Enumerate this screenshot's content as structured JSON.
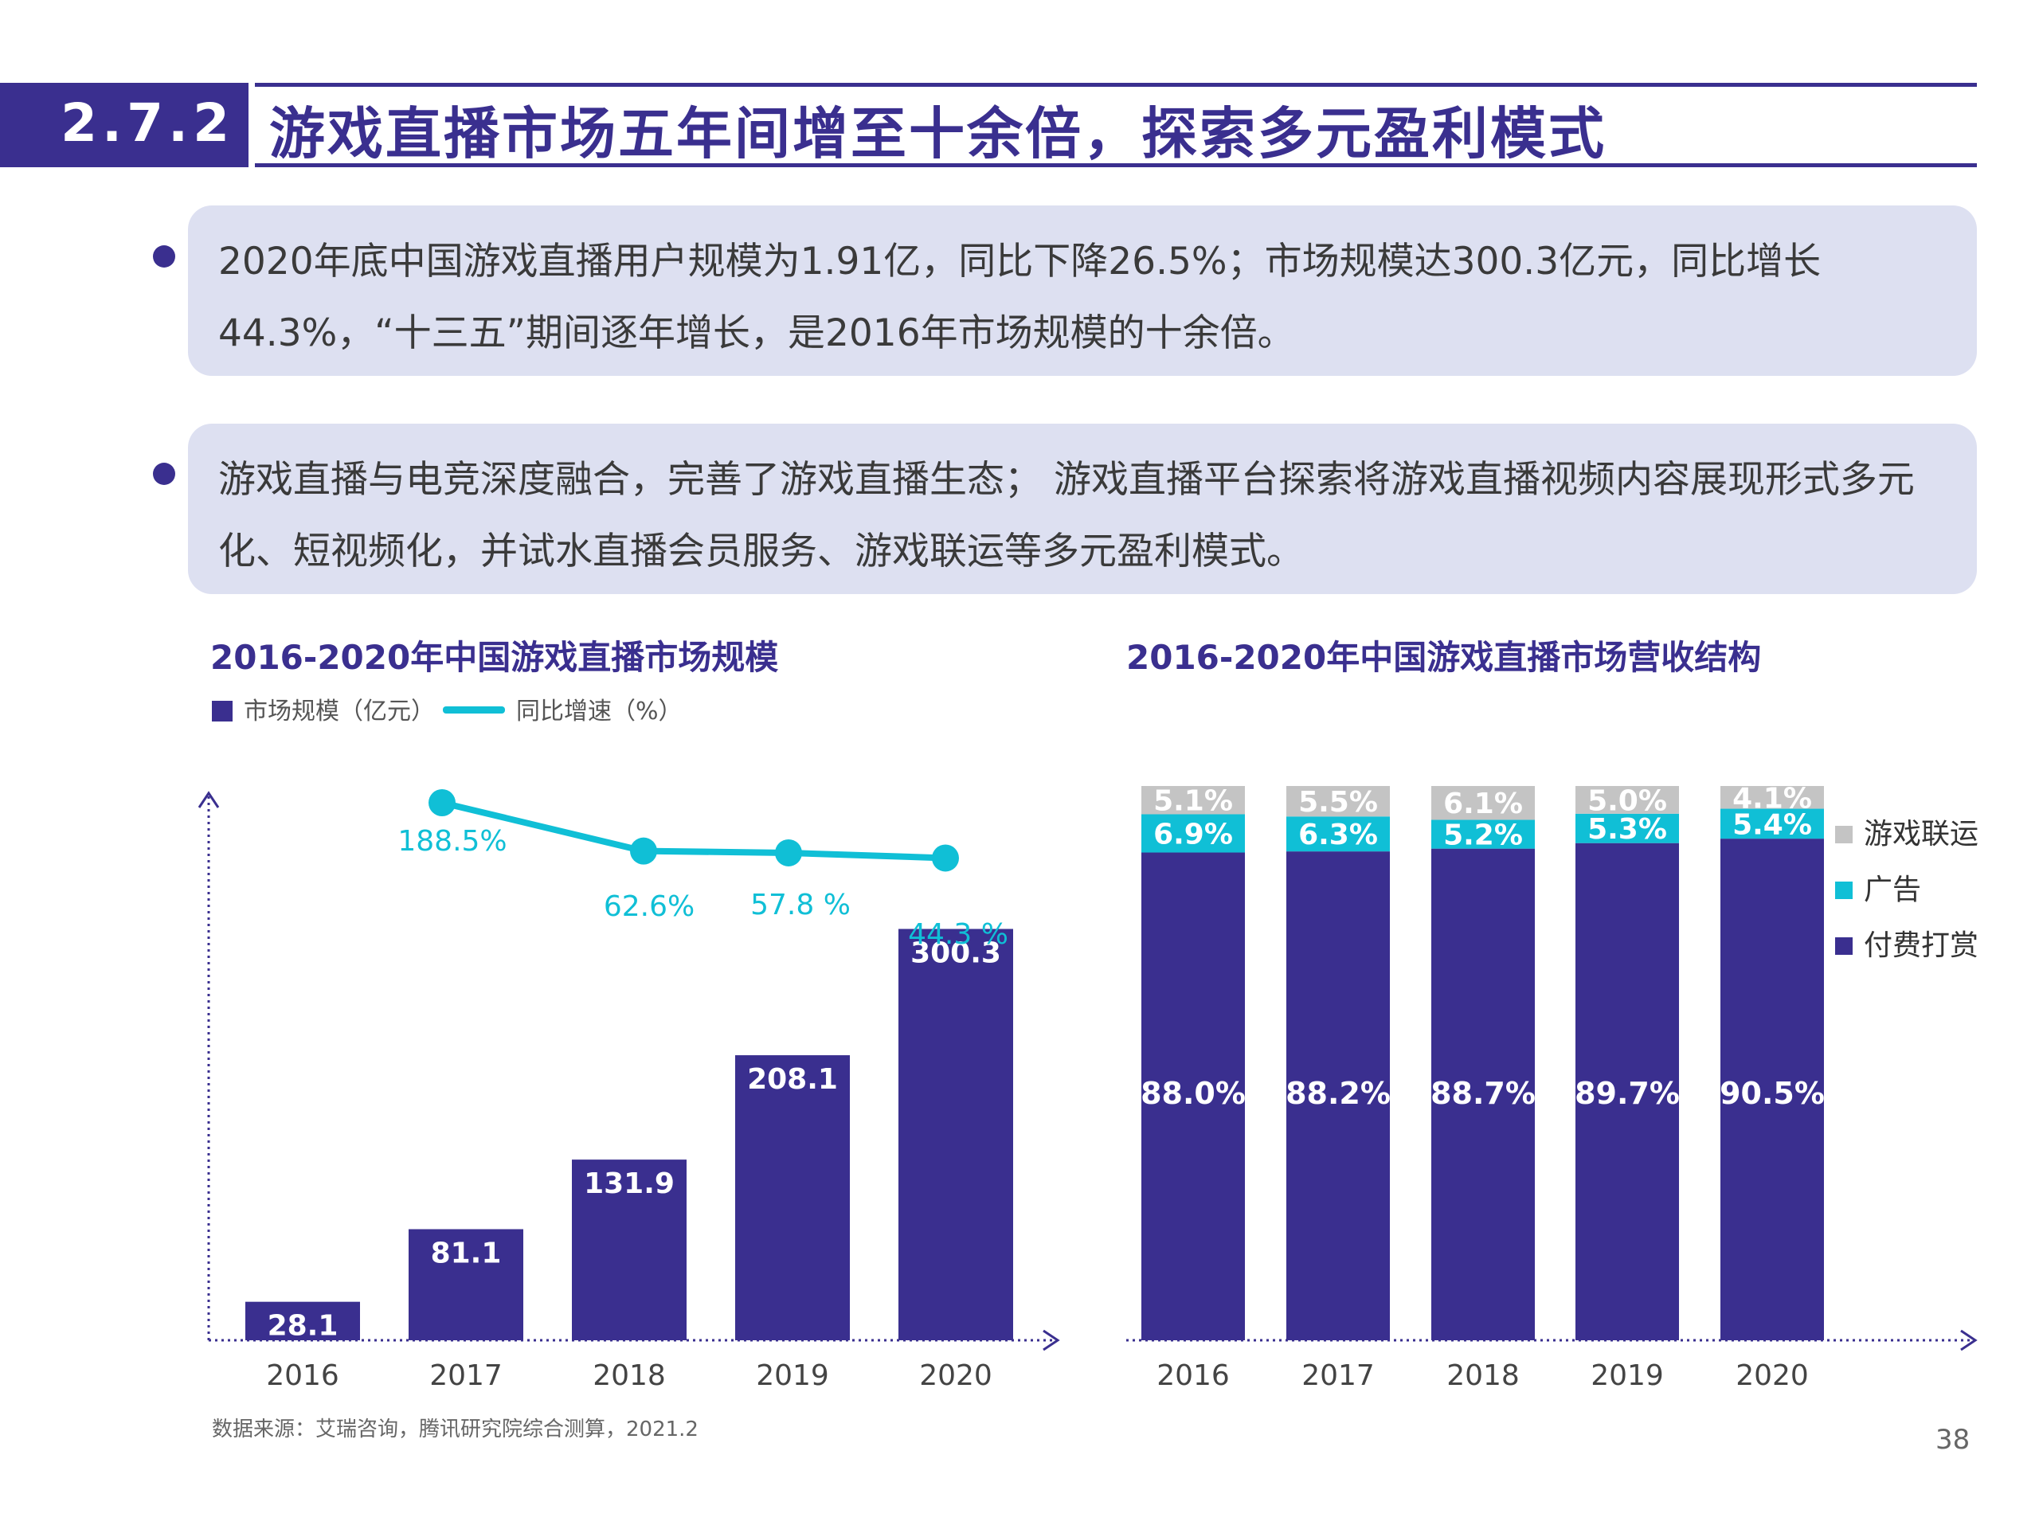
{
  "header": {
    "section_number": "2.7.2",
    "title": "游戏直播市场五年间增至十余倍，探索多元盈利模式"
  },
  "bullets": [
    "2020年底中国游戏直播用户规模为1.91亿，同比下降26.5%；市场规模达300.3亿元，同比增长44.3%，“十三五”期间逐年增长，是2016年市场规模的十余倍。",
    "游戏直播与电竞深度融合，完善了游戏直播生态； 游戏直播平台探索将游戏直播视频内容展现形式多元化、短视频化，并试水直播会员服务、游戏联运等多元盈利模式。"
  ],
  "colors": {
    "primary": "#3a2f8f",
    "cyan": "#10bfd6",
    "gray": "#c4c4c4",
    "box": "#dde0f1"
  },
  "chart_data": [
    {
      "type": "bar",
      "title": "2016-2020年中国游戏直播市场规模",
      "categories": [
        "2016",
        "2017",
        "2018",
        "2019",
        "2020"
      ],
      "series": [
        {
          "name": "市场规模（亿元）",
          "type": "bar",
          "values": [
            28.1,
            81.1,
            131.9,
            208.1,
            300.3
          ],
          "labels": [
            "28.1",
            "81.1",
            "131.9",
            "208.1",
            "300.3"
          ]
        },
        {
          "name": "同比增速（%）",
          "type": "line",
          "x": [
            "2017",
            "2018",
            "2019",
            "2020"
          ],
          "values": [
            188.5,
            62.6,
            57.8,
            44.3
          ],
          "labels": [
            "188.5%",
            "62.6%",
            "57.8 %",
            "44.3 %"
          ]
        }
      ],
      "xlabel": "",
      "ylabel": "",
      "legend": "top-left",
      "grid": false
    },
    {
      "type": "bar",
      "stacked": true,
      "title": "2016-2020年中国游戏直播市场营收结构",
      "categories": [
        "2016",
        "2017",
        "2018",
        "2019",
        "2020"
      ],
      "series": [
        {
          "name": "付费打赏",
          "values": [
            88.0,
            88.2,
            88.7,
            89.7,
            90.5
          ],
          "labels": [
            "88.0%",
            "88.2%",
            "88.7%",
            "89.7%",
            "90.5%"
          ]
        },
        {
          "name": "广告",
          "values": [
            6.9,
            6.3,
            5.2,
            5.3,
            5.4
          ],
          "labels": [
            "6.9%",
            "6.3%",
            "5.2%",
            "5.3%",
            "5.4%"
          ]
        },
        {
          "name": "游戏联运",
          "values": [
            5.1,
            5.5,
            6.1,
            5.0,
            4.1
          ],
          "labels": [
            "5.1%",
            "5.5%",
            "6.1%",
            "5.0%",
            "4.1%"
          ]
        }
      ],
      "legend_order": [
        "游戏联运",
        "广告",
        "付费打赏"
      ],
      "ylim": [
        0,
        100
      ],
      "legend": "right",
      "grid": false
    }
  ],
  "source": "数据来源：艾瑞咨询，腾讯研究院综合测算，2021.2",
  "page_number": "38"
}
